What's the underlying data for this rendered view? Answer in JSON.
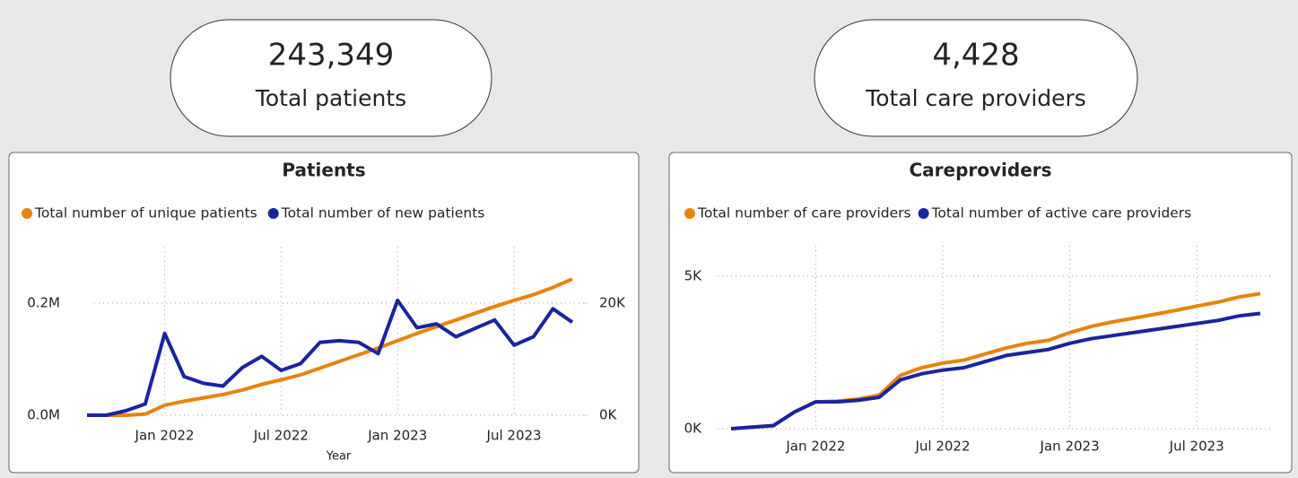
{
  "cards": [
    {
      "value": "243,349",
      "label": "Total patients"
    },
    {
      "value": "4,428",
      "label": "Total care providers"
    }
  ],
  "chart_data": [
    {
      "type": "line",
      "title": "Patients",
      "x_label": "Year",
      "x": [
        "2021-09",
        "2021-10",
        "2021-11",
        "2021-12",
        "2022-01",
        "2022-02",
        "2022-03",
        "2022-04",
        "2022-05",
        "2022-06",
        "2022-07",
        "2022-08",
        "2022-09",
        "2022-10",
        "2022-11",
        "2022-12",
        "2023-01",
        "2023-02",
        "2023-03",
        "2023-04",
        "2023-05",
        "2023-06",
        "2023-07",
        "2023-08",
        "2023-09",
        "2023-10"
      ],
      "xticks": [
        {
          "value": "2022-01",
          "label": "Jan 2022"
        },
        {
          "value": "2022-07",
          "label": "Jul 2022"
        },
        {
          "value": "2023-01",
          "label": "Jan 2023"
        },
        {
          "value": "2023-07",
          "label": "Jul 2023"
        }
      ],
      "ylim": [
        0,
        300000
      ],
      "yticks": [
        {
          "value": 0,
          "label": "0.0M"
        },
        {
          "value": 200000,
          "label": "0.2M"
        }
      ],
      "y2lim": [
        0,
        30000
      ],
      "y2ticks": [
        {
          "value": 0,
          "label": "0K"
        },
        {
          "value": 20000,
          "label": "20K"
        }
      ],
      "grid": true,
      "legend": "top-left",
      "series": [
        {
          "name": "Total number of unique patients",
          "color": "#e8830c",
          "values": [
            0,
            0,
            0,
            2000,
            18000,
            25000,
            31000,
            37000,
            45000,
            55000,
            63000,
            72000,
            84000,
            96000,
            108000,
            120000,
            133000,
            146000,
            158000,
            170000,
            182000,
            194000,
            205000,
            215000,
            228000,
            243000
          ]
        },
        {
          "name": "Total number of new patients",
          "color": "#1a24a0",
          "axis": "y2",
          "values": [
            0,
            0,
            800,
            2000,
            14600,
            6900,
            5700,
            5200,
            8500,
            10500,
            8000,
            9200,
            13000,
            13300,
            13000,
            11000,
            20500,
            15600,
            16300,
            14000,
            15500,
            17000,
            12500,
            14000,
            19000,
            16600
          ]
        }
      ]
    },
    {
      "type": "line",
      "title": "Careproviders",
      "x": [
        "2021-09",
        "2021-10",
        "2021-11",
        "2021-12",
        "2022-01",
        "2022-02",
        "2022-03",
        "2022-04",
        "2022-05",
        "2022-06",
        "2022-07",
        "2022-08",
        "2022-09",
        "2022-10",
        "2022-11",
        "2022-12",
        "2023-01",
        "2023-02",
        "2023-03",
        "2023-04",
        "2023-05",
        "2023-06",
        "2023-07",
        "2023-08",
        "2023-09",
        "2023-10"
      ],
      "xticks": [
        {
          "value": "2022-01",
          "label": "Jan 2022"
        },
        {
          "value": "2022-07",
          "label": "Jul 2022"
        },
        {
          "value": "2023-01",
          "label": "Jan 2023"
        },
        {
          "value": "2023-07",
          "label": "Jul 2023"
        }
      ],
      "ylim": [
        0,
        6000
      ],
      "yticks": [
        {
          "value": 0,
          "label": "0K"
        },
        {
          "value": 5000,
          "label": "5K"
        }
      ],
      "grid": true,
      "legend": "top-left",
      "series": [
        {
          "name": "Total number of care providers",
          "color": "#e8830c",
          "values": [
            0,
            50,
            100,
            550,
            880,
            900,
            970,
            1100,
            1750,
            2000,
            2150,
            2250,
            2450,
            2650,
            2800,
            2900,
            3150,
            3350,
            3500,
            3620,
            3750,
            3880,
            4020,
            4150,
            4320,
            4430
          ]
        },
        {
          "name": "Total number of active care providers",
          "color": "#1a24a0",
          "values": [
            0,
            50,
            100,
            550,
            880,
            880,
            930,
            1030,
            1600,
            1800,
            1920,
            2000,
            2200,
            2400,
            2500,
            2600,
            2800,
            2950,
            3050,
            3150,
            3250,
            3350,
            3450,
            3550,
            3700,
            3780
          ]
        }
      ]
    }
  ]
}
